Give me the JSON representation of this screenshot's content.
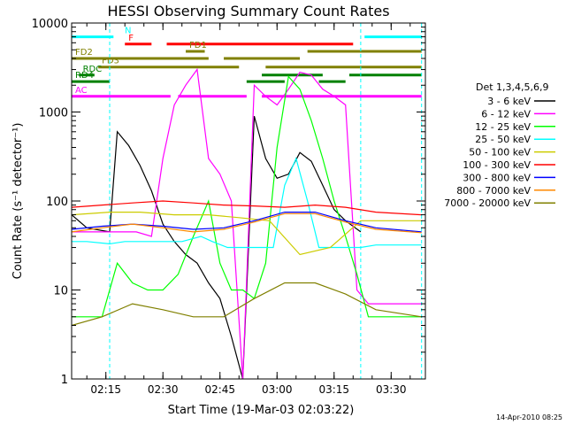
{
  "chart_data": {
    "type": "line",
    "title": "HESSI Observing Summary Count Rates",
    "xlabel": "Start Time (19-Mar-03 02:03:22)",
    "ylabel": "Count Rate (s⁻¹ detector⁻¹)",
    "footer": "14-Apr-2010 08:25",
    "y_scale": "log",
    "ylim": [
      1,
      10000
    ],
    "xlim": [
      "02:06",
      "03:39"
    ],
    "x_ticks": [
      "02:15",
      "02:30",
      "02:45",
      "03:00",
      "03:15",
      "03:30"
    ],
    "y_ticks": [
      "1",
      "10",
      "100",
      "1000",
      "10000"
    ],
    "legend_title": "Det 1,3,4,5,6,9",
    "legend_position": "right",
    "series": [
      {
        "name": "3 - 6 keV",
        "color": "#000000",
        "x": [
          "02:06",
          "02:10",
          "02:16",
          "02:18",
          "02:21",
          "02:24",
          "02:27",
          "02:30",
          "02:33",
          "02:36",
          "02:39",
          "02:42",
          "02:45",
          "02:48",
          "02:51",
          "02:54",
          "02:57",
          "03:00",
          "03:03",
          "03:06",
          "03:09",
          "03:12",
          "03:15",
          "03:18",
          "03:22"
        ],
        "values": [
          70,
          50,
          45,
          600,
          420,
          250,
          130,
          55,
          35,
          25,
          20,
          12,
          8,
          3,
          1,
          900,
          300,
          180,
          200,
          350,
          280,
          150,
          80,
          60,
          45
        ]
      },
      {
        "name": "6 - 12 keV",
        "color": "#ff00ff",
        "x": [
          "02:06",
          "02:10",
          "02:16",
          "02:19",
          "02:23",
          "02:27",
          "02:30",
          "02:33",
          "02:36",
          "02:39",
          "02:42",
          "02:45",
          "02:48",
          "02:51",
          "02:54",
          "02:57",
          "03:00",
          "03:03",
          "03:06",
          "03:09",
          "03:12",
          "03:15",
          "03:18",
          "03:21",
          "03:24",
          "03:38"
        ],
        "values": [
          45,
          45,
          45,
          45,
          45,
          40,
          300,
          1200,
          2000,
          3000,
          300,
          200,
          100,
          1,
          2000,
          1500,
          1200,
          1800,
          2800,
          2600,
          1800,
          1500,
          1200,
          10,
          7,
          7
        ]
      },
      {
        "name": "12 - 25 keV",
        "color": "#00ff00",
        "x": [
          "02:06",
          "02:10",
          "02:14",
          "02:18",
          "02:22",
          "02:26",
          "02:30",
          "02:34",
          "02:38",
          "02:42",
          "02:45",
          "02:48",
          "02:51",
          "02:54",
          "02:57",
          "03:00",
          "03:03",
          "03:06",
          "03:09",
          "03:12",
          "03:15",
          "03:18",
          "03:21",
          "03:24",
          "03:30",
          "03:38"
        ],
        "values": [
          5,
          5,
          5,
          20,
          12,
          10,
          10,
          15,
          40,
          100,
          20,
          10,
          10,
          8,
          20,
          400,
          2500,
          1800,
          800,
          300,
          100,
          40,
          15,
          5,
          5,
          5
        ]
      },
      {
        "name": "25 - 50 keV",
        "color": "#00ffff",
        "x": [
          "02:06",
          "02:10",
          "02:16",
          "02:20",
          "02:25",
          "02:30",
          "02:35",
          "02:40",
          "02:43",
          "02:47",
          "02:51",
          "02:55",
          "02:59",
          "03:02",
          "03:05",
          "03:08",
          "03:11",
          "03:14",
          "03:18",
          "03:22",
          "03:26",
          "03:30",
          "03:38"
        ],
        "values": [
          35,
          35,
          33,
          35,
          35,
          35,
          35,
          40,
          35,
          30,
          30,
          30,
          30,
          150,
          300,
          100,
          30,
          30,
          30,
          30,
          32,
          32,
          32
        ]
      },
      {
        "name": "50 - 100 keV",
        "color": "#cccc00",
        "x": [
          "02:06",
          "02:16",
          "02:24",
          "02:33",
          "02:42",
          "02:50",
          "02:58",
          "03:06",
          "03:14",
          "03:22",
          "03:30",
          "03:38"
        ],
        "values": [
          70,
          75,
          75,
          70,
          70,
          65,
          60,
          25,
          30,
          60,
          60,
          60
        ]
      },
      {
        "name": "100 - 300 keV",
        "color": "#ff0000",
        "x": [
          "02:06",
          "02:14",
          "02:22",
          "02:30",
          "02:38",
          "02:46",
          "02:54",
          "03:02",
          "03:10",
          "03:18",
          "03:26",
          "03:38"
        ],
        "values": [
          85,
          90,
          95,
          100,
          95,
          90,
          88,
          85,
          90,
          85,
          75,
          70
        ]
      },
      {
        "name": "300 - 800 keV",
        "color": "#0000ff",
        "x": [
          "02:06",
          "02:14",
          "02:22",
          "02:30",
          "02:38",
          "02:46",
          "02:54",
          "03:02",
          "03:10",
          "03:18",
          "03:26",
          "03:38"
        ],
        "values": [
          48,
          52,
          55,
          52,
          48,
          50,
          60,
          75,
          75,
          60,
          50,
          45
        ]
      },
      {
        "name": "800 - 7000 keV",
        "color": "#ff8800",
        "x": [
          "02:06",
          "02:14",
          "02:22",
          "02:30",
          "02:38",
          "02:46",
          "02:54",
          "03:02",
          "03:10",
          "03:18",
          "03:26",
          "03:38"
        ],
        "values": [
          45,
          50,
          55,
          50,
          45,
          48,
          58,
          72,
          72,
          58,
          48,
          44
        ]
      },
      {
        "name": "7000 - 20000 keV",
        "color": "#808000",
        "x": [
          "02:06",
          "02:14",
          "02:22",
          "02:30",
          "02:38",
          "02:46",
          "02:54",
          "03:02",
          "03:10",
          "03:18",
          "03:26",
          "03:38"
        ],
        "values": [
          4,
          5,
          7,
          6,
          5,
          5,
          8,
          12,
          12,
          9,
          6,
          5
        ]
      }
    ],
    "flags": [
      {
        "label": "N",
        "color": "#00ffff",
        "value": 7000,
        "segments": [
          [
            "02:06",
            "02:17"
          ],
          [
            "03:23",
            "03:38"
          ]
        ]
      },
      {
        "label": "F",
        "color": "#ff0000",
        "value": 5800,
        "segments": [
          [
            "02:20",
            "02:27"
          ],
          [
            "02:31",
            "03:20"
          ]
        ]
      },
      {
        "label": "FD1",
        "color": "#808000",
        "value": 4800,
        "segments": [
          [
            "02:36",
            "02:41"
          ],
          [
            "03:08",
            "03:38"
          ]
        ]
      },
      {
        "label": "FD2",
        "color": "#808000",
        "value": 4000,
        "segments": [
          [
            "02:06",
            "02:42"
          ],
          [
            "02:46",
            "03:06"
          ]
        ]
      },
      {
        "label": "FD3",
        "color": "#808000",
        "value": 3200,
        "segments": [
          [
            "02:13",
            "02:50"
          ],
          [
            "02:57",
            "03:38"
          ]
        ]
      },
      {
        "label": "RDC",
        "color": "#008000",
        "value": 2600,
        "segments": [
          [
            "02:08",
            "02:12"
          ],
          [
            "02:56",
            "03:12"
          ],
          [
            "03:19",
            "03:38"
          ]
        ]
      },
      {
        "label": "RD4",
        "color": "#008000",
        "value": 2200,
        "segments": [
          [
            "02:06",
            "02:16"
          ],
          [
            "02:52",
            "03:02"
          ],
          [
            "03:11",
            "03:18"
          ]
        ]
      },
      {
        "label": "AC",
        "color": "#ff00ff",
        "value": 1500,
        "segments": [
          [
            "02:06",
            "02:32"
          ],
          [
            "02:34",
            "02:52"
          ],
          [
            "02:56",
            "03:38"
          ]
        ]
      }
    ],
    "v_markers": [
      {
        "x": "02:16",
        "color": "#00ffff"
      },
      {
        "x": "03:22",
        "color": "#00ffff"
      },
      {
        "x": "03:38",
        "color": "#00ffff"
      }
    ]
  }
}
